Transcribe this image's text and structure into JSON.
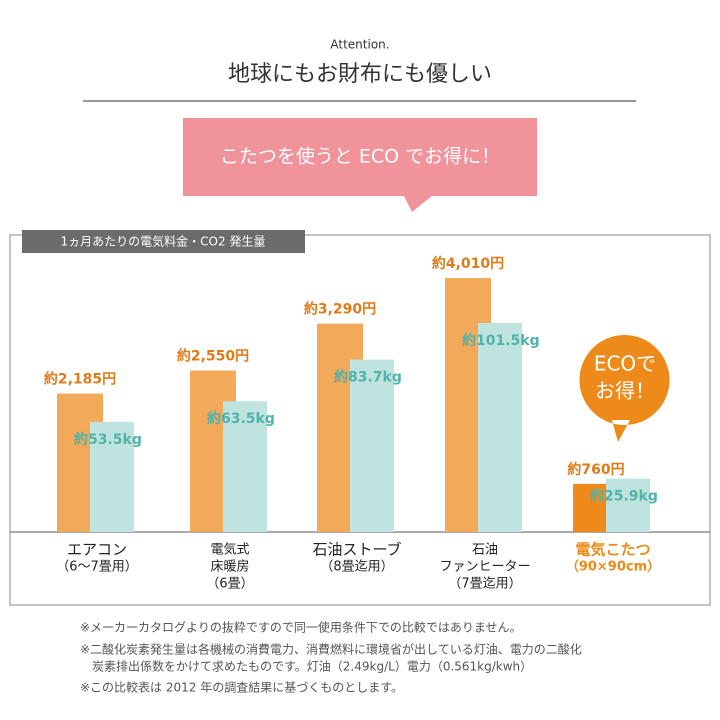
{
  "header": {
    "kicker": "Attention.",
    "title": "地球にもお財布にも優しい",
    "banner": "こたつを使うと ECO でお得に！"
  },
  "chart_data": {
    "type": "bar",
    "subtitle": "1ヵ月あたりの電気料金・CO2 発生量",
    "categories": [
      [
        "エアコン",
        "（6〜7畳用）"
      ],
      [
        "電気式",
        "床暖房",
        "（6畳）"
      ],
      [
        "石油ストーブ",
        "（8畳迄用）"
      ],
      [
        "石油",
        "ファンヒーター",
        "（7畳迄用）"
      ],
      [
        "電気こたつ",
        "（90×90cm）"
      ]
    ],
    "series": [
      {
        "colors": [
          "#f3a95a",
          "#f3a95a",
          "#f3a95a",
          "#f3a95a",
          "#ee8a1a"
        ],
        "values": [
          2185,
          2550,
          3290,
          4010,
          760
        ],
        "value_labels": [
          "約2,185円",
          "約2,550円",
          "約3,290円",
          "約4,010円",
          "約760円"
        ]
      },
      {
        "colors": [
          "#bfe3de",
          "#bfe3de",
          "#bfe3de",
          "#bfe3de",
          "#bfe3de"
        ],
        "values": [
          53.5,
          63.5,
          83.7,
          101.5,
          25.9
        ],
        "value_labels": [
          "約53.5kg",
          "約63.5kg",
          "約83.7kg",
          "約101.5kg",
          "約25.9kg"
        ]
      }
    ],
    "badge": [
      "ECOで",
      "お得！"
    ]
  },
  "notes": [
    "※メーカーカタログよりの抜粋ですので同一使用条件下での比較ではありません。",
    "※二酸化炭素発生量は各機械の消費電力、消費燃料に環境省が出している灯油、電力の二酸化",
    "　炭素排出係数をかけて求めたものです。灯油（2.49kg/L）電力（0.561kg/kwh）",
    "※この比較表は 2012 年の調査結果に基づくものとします。"
  ]
}
